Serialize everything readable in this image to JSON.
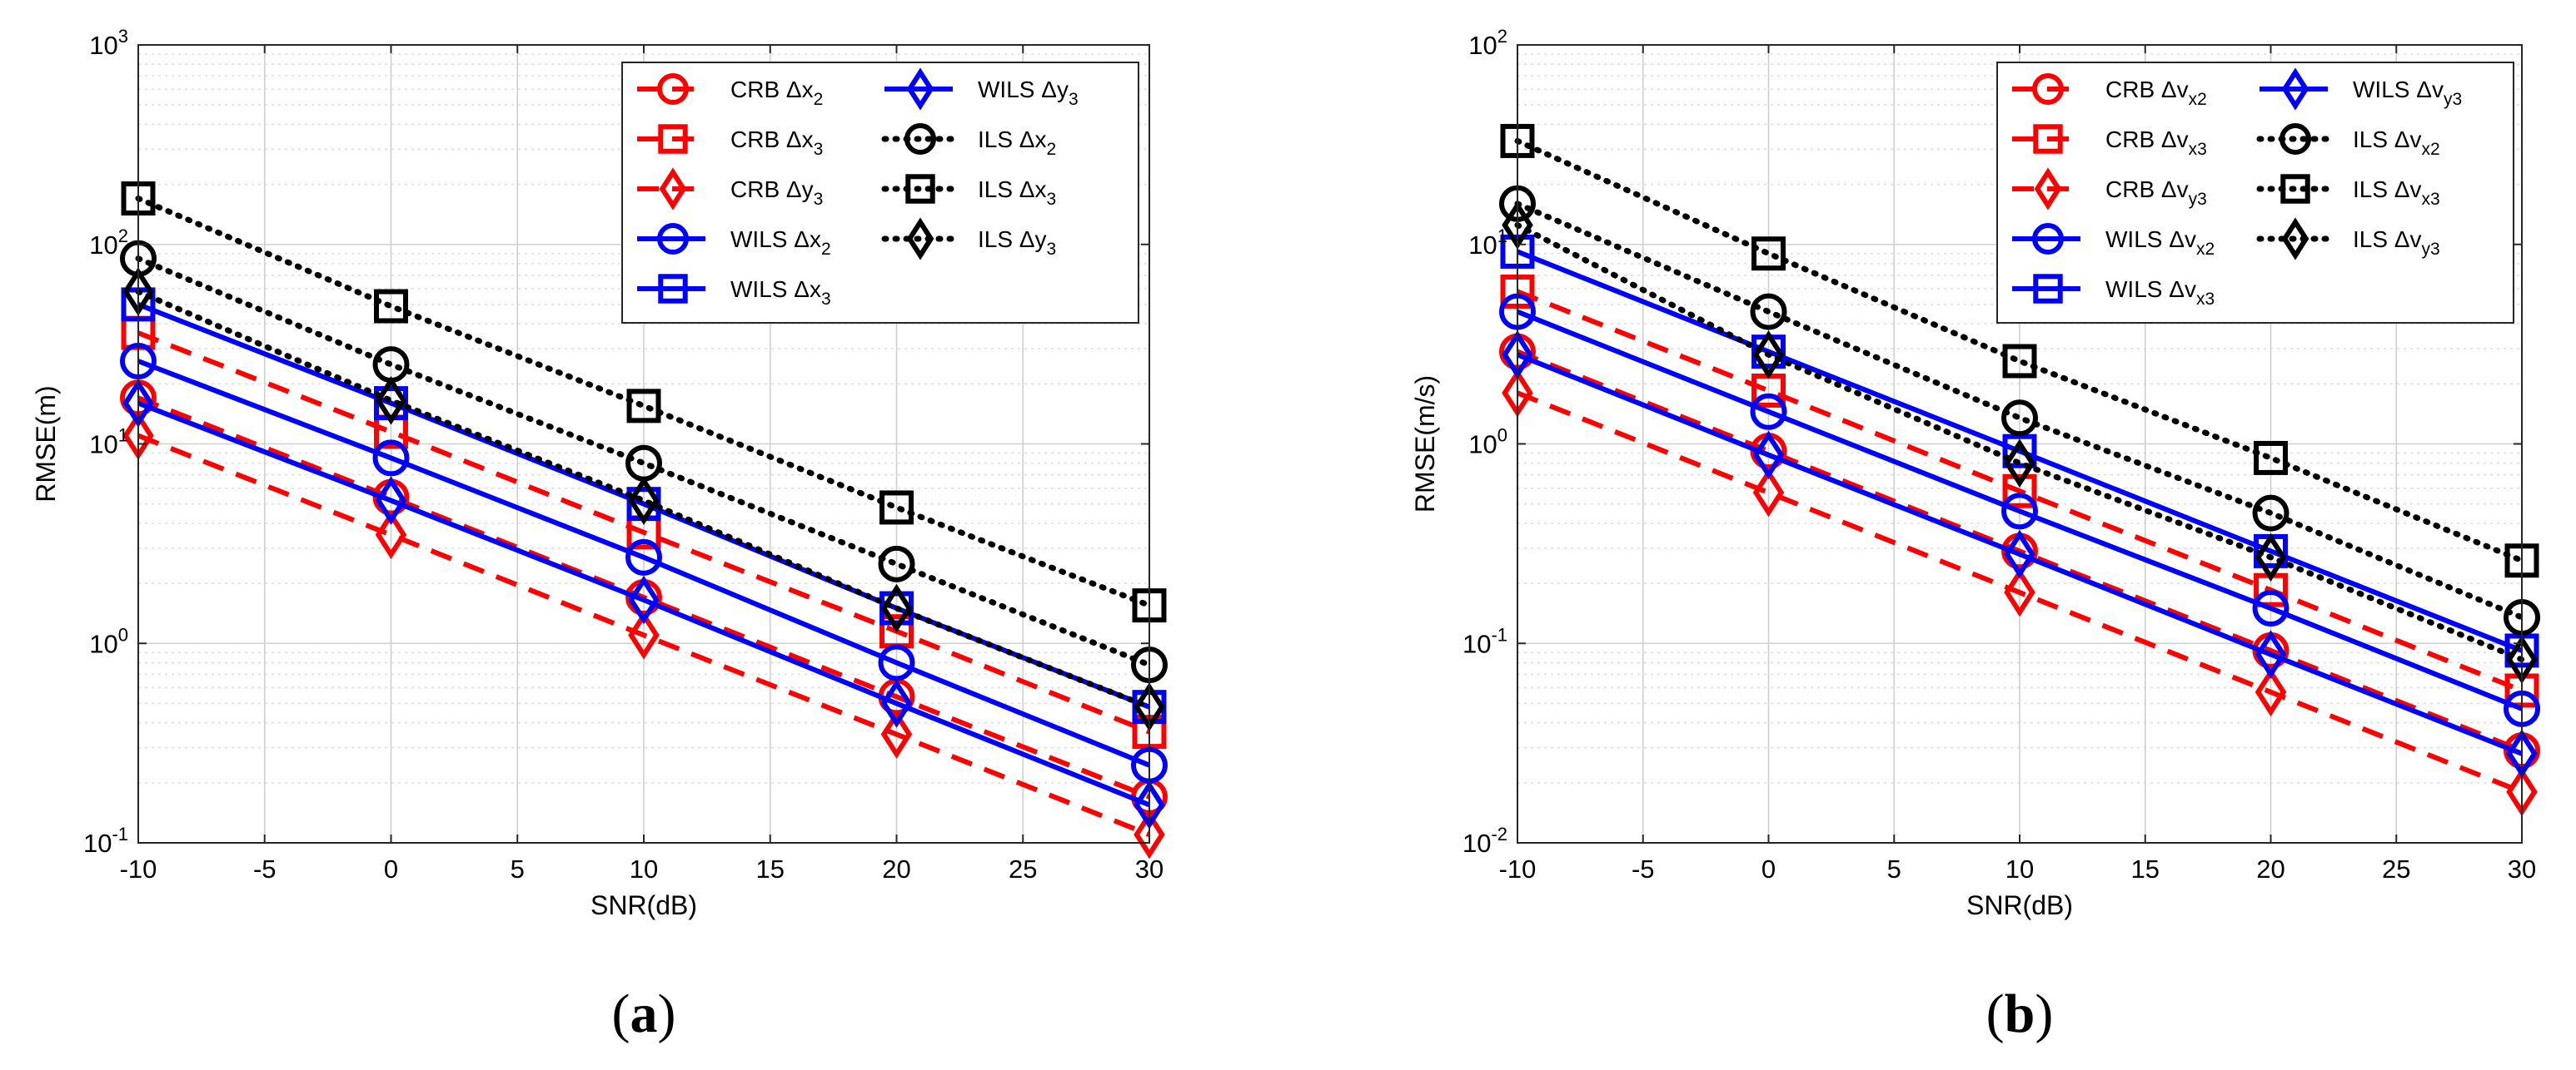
{
  "colors": {
    "crb": "#ff0000",
    "wils": "#0000ff",
    "ils": "#000000"
  },
  "chart_data": [
    {
      "type": "line",
      "panel": "a",
      "caption": "(a)",
      "xlabel": "SNR(dB)",
      "ylabel": "RMSE(m)",
      "xscale": "linear",
      "yscale": "log",
      "xlim": [
        -10,
        30
      ],
      "ylim": [
        0.1,
        1000
      ],
      "xticks": [
        -10,
        -5,
        0,
        5,
        10,
        15,
        20,
        25,
        30
      ],
      "xtick_labels": [
        "-10",
        "-5",
        "0",
        "5",
        "10",
        "15",
        "20",
        "25",
        "30"
      ],
      "yticks": [
        {
          "value": 0.1,
          "base": "10",
          "exp": "-1"
        },
        {
          "value": 1,
          "base": "10",
          "exp": "0"
        },
        {
          "value": 10,
          "base": "10",
          "exp": "1"
        },
        {
          "value": 100,
          "base": "10",
          "exp": "2"
        },
        {
          "value": 1000,
          "base": "10",
          "exp": "3"
        }
      ],
      "grid": true,
      "legend_position": "top-right",
      "x": [
        -10,
        0,
        10,
        20,
        30
      ],
      "series": [
        {
          "name": "CRB Δx₂",
          "base": "CRB Δx",
          "sub": "2",
          "style": "crb",
          "marker": "circle",
          "values": [
            17,
            5.4,
            1.7,
            0.54,
            0.17
          ]
        },
        {
          "name": "CRB Δx₃",
          "base": "CRB Δx",
          "sub": "3",
          "style": "crb",
          "marker": "square",
          "values": [
            36,
            11.5,
            3.6,
            1.15,
            0.36
          ]
        },
        {
          "name": "CRB Δy₃",
          "base": "CRB Δy",
          "sub": "3",
          "style": "crb",
          "marker": "diamond",
          "values": [
            11,
            3.5,
            1.1,
            0.35,
            0.11
          ]
        },
        {
          "name": "WILS Δx₂",
          "base": "WILS Δx",
          "sub": "2",
          "style": "wils",
          "marker": "circle",
          "values": [
            26,
            8.5,
            2.7,
            0.8,
            0.245
          ]
        },
        {
          "name": "WILS Δx₃",
          "base": "WILS Δx",
          "sub": "3",
          "style": "wils",
          "marker": "square",
          "values": [
            50,
            16,
            5.0,
            1.5,
            0.48
          ]
        },
        {
          "name": "WILS Δy₃",
          "base": "WILS Δy",
          "sub": "3",
          "style": "wils",
          "marker": "diamond",
          "values": [
            16,
            5.2,
            1.65,
            0.5,
            0.155
          ]
        },
        {
          "name": "ILS Δx₂",
          "base": "ILS Δx",
          "sub": "2",
          "style": "ils",
          "marker": "circle",
          "values": [
            85,
            25,
            8.0,
            2.5,
            0.78
          ]
        },
        {
          "name": "ILS Δx₃",
          "base": "ILS Δx",
          "sub": "3",
          "style": "ils",
          "marker": "square",
          "values": [
            170,
            49,
            15.5,
            4.8,
            1.55
          ]
        },
        {
          "name": "ILS Δy₃",
          "base": "ILS Δy",
          "sub": "3",
          "style": "ils",
          "marker": "diamond",
          "values": [
            58,
            16.5,
            5.2,
            1.5,
            0.48
          ]
        }
      ],
      "legend_order": [
        0,
        1,
        2,
        3,
        4,
        5,
        6,
        7,
        8
      ]
    },
    {
      "type": "line",
      "panel": "b",
      "caption": "(b)",
      "xlabel": "SNR(dB)",
      "ylabel": "RMSE(m/s)",
      "xscale": "linear",
      "yscale": "log",
      "xlim": [
        -10,
        30
      ],
      "ylim": [
        0.01,
        100
      ],
      "xticks": [
        -10,
        -5,
        0,
        5,
        10,
        15,
        20,
        25,
        30
      ],
      "xtick_labels": [
        "-10",
        "-5",
        "0",
        "5",
        "10",
        "15",
        "20",
        "25",
        "30"
      ],
      "yticks": [
        {
          "value": 0.01,
          "base": "10",
          "exp": "-2"
        },
        {
          "value": 0.1,
          "base": "10",
          "exp": "-1"
        },
        {
          "value": 1,
          "base": "10",
          "exp": "0"
        },
        {
          "value": 10,
          "base": "10",
          "exp": "1"
        },
        {
          "value": 100,
          "base": "10",
          "exp": "2"
        }
      ],
      "grid": true,
      "legend_position": "top-right",
      "x": [
        -10,
        0,
        10,
        20,
        30
      ],
      "series": [
        {
          "name": "CRB Δvx2",
          "base": "CRB Δv",
          "sub": "x2",
          "style": "crb",
          "marker": "circle",
          "values": [
            2.9,
            0.92,
            0.29,
            0.092,
            0.029
          ]
        },
        {
          "name": "CRB Δvx3",
          "base": "CRB Δv",
          "sub": "x3",
          "style": "crb",
          "marker": "square",
          "values": [
            5.8,
            1.85,
            0.58,
            0.185,
            0.058
          ]
        },
        {
          "name": "CRB Δvy3",
          "base": "CRB Δv",
          "sub": "y3",
          "style": "crb",
          "marker": "diamond",
          "values": [
            1.8,
            0.57,
            0.18,
            0.057,
            0.018
          ]
        },
        {
          "name": "WILS Δvx2",
          "base": "WILS Δv",
          "sub": "x2",
          "style": "wils",
          "marker": "circle",
          "values": [
            4.6,
            1.45,
            0.46,
            0.15,
            0.047
          ]
        },
        {
          "name": "WILS Δvx3",
          "base": "WILS Δv",
          "sub": "x3",
          "style": "wils",
          "marker": "square",
          "values": [
            9.2,
            2.9,
            0.92,
            0.29,
            0.092
          ]
        },
        {
          "name": "WILS Δvy3",
          "base": "WILS Δv",
          "sub": "y3",
          "style": "wils",
          "marker": "diamond",
          "values": [
            2.8,
            0.88,
            0.28,
            0.088,
            0.028
          ]
        },
        {
          "name": "ILS Δvx2",
          "base": "ILS Δv",
          "sub": "x2",
          "style": "ils",
          "marker": "circle",
          "values": [
            16,
            4.6,
            1.35,
            0.45,
            0.135
          ]
        },
        {
          "name": "ILS Δvx3",
          "base": "ILS Δv",
          "sub": "x3",
          "style": "ils",
          "marker": "square",
          "values": [
            33,
            9.0,
            2.6,
            0.85,
            0.26
          ]
        },
        {
          "name": "ILS Δvy3",
          "base": "ILS Δv",
          "sub": "y3",
          "style": "ils",
          "marker": "diamond",
          "values": [
            12.5,
            2.8,
            0.8,
            0.27,
            0.083
          ]
        }
      ],
      "legend_order": [
        0,
        1,
        2,
        3,
        4,
        5,
        6,
        7,
        8
      ]
    }
  ]
}
